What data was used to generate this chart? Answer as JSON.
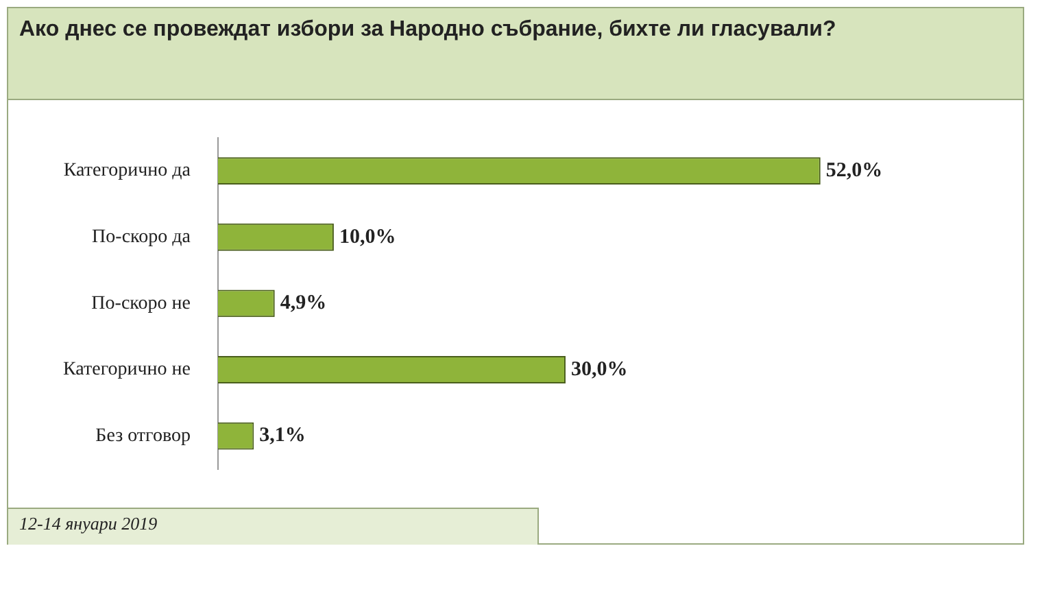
{
  "chart_data": {
    "type": "bar",
    "orientation": "horizontal",
    "title": "Ако днес се провеждат избори за Народно събрание, бихте ли гласували?",
    "categories": [
      "Категорично да",
      "По-скоро да",
      "По-скоро не",
      "Категорично не",
      "Без отговор"
    ],
    "values": [
      52.0,
      10.0,
      4.9,
      30.0,
      3.1
    ],
    "value_labels": [
      "52,0%",
      "10,0%",
      "4,9%",
      "30,0%",
      "3,1%"
    ],
    "color": "#8fb43a",
    "legend": false,
    "annotations": [
      "12-14 януари 2019"
    ]
  }
}
